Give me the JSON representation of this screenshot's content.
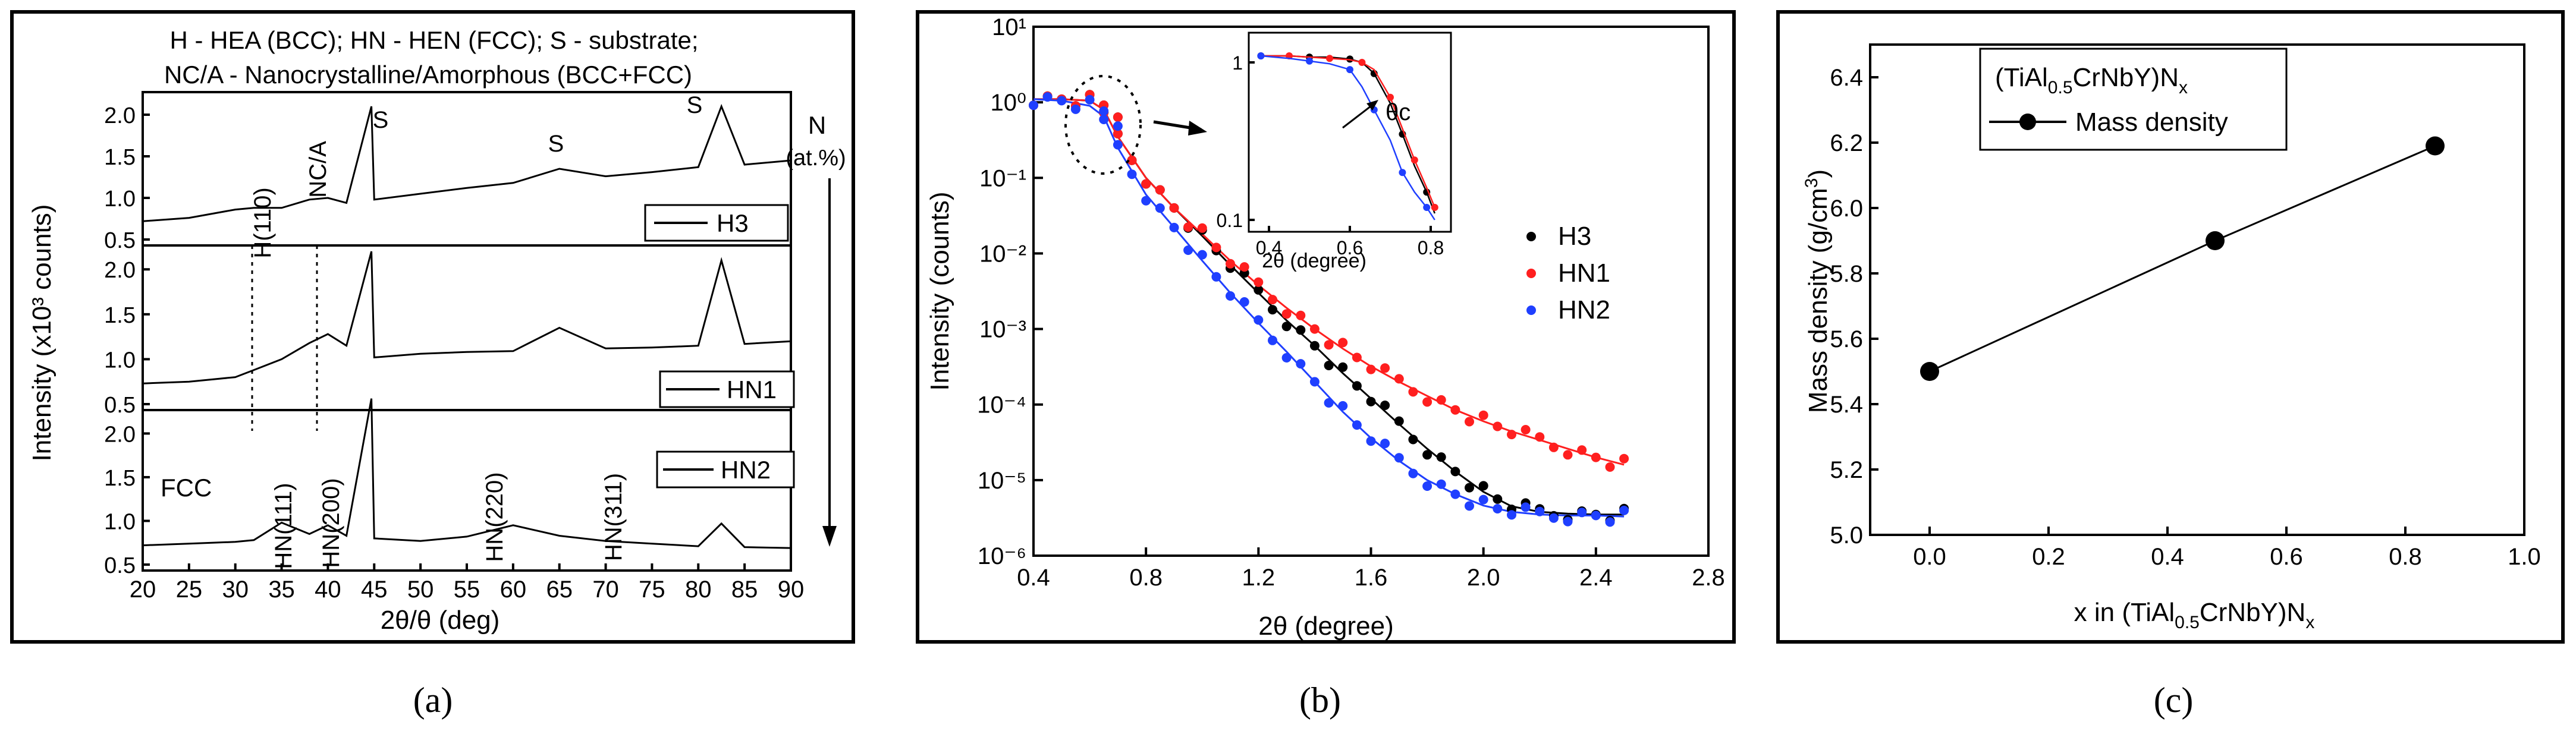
{
  "panel_a": {
    "header_line1": "H - HEA (BCC); HN - HEN (FCC); S - substrate;",
    "header_line2": "NC/A - Nanocrystalline/Amorphous (BCC+FCC)",
    "ylabel": "Intensity (x10³ counts)",
    "xlabel": "2θ/θ (deg)",
    "n_label": "N",
    "n_unit": "(at.%)",
    "caption": "(a)",
    "x_ticks": [
      "20",
      "25",
      "30",
      "35",
      "40",
      "45",
      "50",
      "55",
      "60",
      "65",
      "70",
      "75",
      "80",
      "85",
      "90"
    ],
    "y_ticks": [
      "0.5",
      "1.0",
      "1.5",
      "2.0"
    ],
    "peak_labels": {
      "h110": "H(110)",
      "nca": "NC/A",
      "s1": "S",
      "s2": "S",
      "s3": "S",
      "fcc": "FCC",
      "hn111": "HN(111)",
      "hn200": "HN(200)",
      "hn220": "HN(220)",
      "hn311": "HN(311)"
    },
    "legends": [
      "H3",
      "HN1",
      "HN2"
    ]
  },
  "panel_b": {
    "inset_theta": "θc",
    "inset_xlabel": "2θ (degree)",
    "inset_x_ticks": [
      "0.4",
      "0.6",
      "0.8"
    ],
    "inset_y_ticks": [
      "1",
      "0.1"
    ],
    "caption": "(b)"
  },
  "panel_c": {
    "legend_title": "(TiAl0.5CrNbY)Nx",
    "legend_entry": "Mass density",
    "caption": "(c)"
  },
  "chart_data": [
    {
      "type": "line",
      "panel": "a",
      "xlabel": "2θ/θ (deg)",
      "ylabel": "Intensity (x10³ counts)",
      "xlim": [
        20,
        90
      ],
      "ylim": [
        0.5,
        2.2
      ],
      "x_sample": [
        20,
        25,
        30,
        32,
        35,
        38,
        40,
        42,
        44.7,
        45,
        50,
        55,
        60,
        65,
        70,
        75,
        80,
        82.5,
        85,
        90
      ],
      "series": [
        {
          "name": "H3",
          "values": [
            0.72,
            0.76,
            0.86,
            0.88,
            0.88,
            0.98,
            1.0,
            0.94,
            2.1,
            0.98,
            1.05,
            1.12,
            1.18,
            1.35,
            1.26,
            1.31,
            1.37,
            2.1,
            1.4,
            1.45
          ]
        },
        {
          "name": "HN1",
          "values": [
            0.73,
            0.75,
            0.8,
            0.88,
            1.0,
            1.18,
            1.28,
            1.15,
            2.2,
            1.02,
            1.06,
            1.08,
            1.09,
            1.35,
            1.12,
            1.13,
            1.15,
            2.1,
            1.17,
            1.2
          ]
        },
        {
          "name": "HN2",
          "values": [
            0.72,
            0.74,
            0.76,
            0.78,
            0.98,
            0.85,
            0.95,
            0.83,
            2.4,
            0.8,
            0.77,
            0.82,
            0.95,
            0.83,
            0.77,
            0.74,
            0.71,
            0.97,
            0.7,
            0.69
          ]
        }
      ]
    },
    {
      "type": "scatter",
      "panel": "b",
      "xlabel": "2θ (degree)",
      "ylabel": "Intensity (counts)",
      "xlim": [
        0.4,
        2.8
      ],
      "ylim": [
        1e-06,
        10
      ],
      "y_scale": "log",
      "x_ticks": [
        "0.4",
        "0.8",
        "1.2",
        "1.6",
        "2.0",
        "2.4",
        "2.8"
      ],
      "y_ticks": [
        "10¹",
        "10⁰",
        "10⁻¹",
        "10⁻²",
        "10⁻³",
        "10⁻⁴",
        "10⁻⁵",
        "10⁻⁶"
      ],
      "x": [
        0.4,
        0.5,
        0.6,
        0.65,
        0.7,
        0.8,
        0.9,
        1.0,
        1.1,
        1.2,
        1.3,
        1.4,
        1.5,
        1.6,
        1.7,
        1.8,
        1.9,
        2.0,
        2.1,
        2.2,
        2.3,
        2.4,
        2.5
      ],
      "series": [
        {
          "name": "H3",
          "values": [
            1.1,
            1.1,
            1.05,
            0.8,
            0.35,
            0.1,
            0.04,
            0.017,
            0.007,
            0.003,
            0.0013,
            0.0006,
            0.00026,
            0.00012,
            5.5e-05,
            2.6e-05,
            1.3e-05,
            7e-06,
            4.5e-06,
            3.8e-06,
            3.6e-06,
            3.5e-06,
            3.5e-06
          ]
        },
        {
          "name": "HN1",
          "values": [
            1.1,
            1.1,
            1.05,
            0.8,
            0.35,
            0.1,
            0.04,
            0.018,
            0.008,
            0.0038,
            0.0019,
            0.001,
            0.00055,
            0.00032,
            0.0002,
            0.00013,
            8.5e-05,
            6e-05,
            4.4e-05,
            3.4e-05,
            2.6e-05,
            2e-05,
            1.6e-05
          ]
        },
        {
          "name": "HN2",
          "values": [
            1.1,
            1.05,
            0.9,
            0.65,
            0.25,
            0.06,
            0.022,
            0.008,
            0.003,
            0.0012,
            0.0005,
            0.0002,
            8e-05,
            3.6e-05,
            1.8e-05,
            1e-05,
            6.5e-06,
            4.6e-06,
            3.8e-06,
            3.5e-06,
            3.4e-06,
            3.4e-06,
            3.3e-06
          ]
        }
      ],
      "colors": {
        "H3": "#000000",
        "HN1": "#ff1f1f",
        "HN2": "#1f3fff"
      }
    },
    {
      "type": "line",
      "panel": "c",
      "xlabel": "x in (TiAl0.5CrNbY)Nx",
      "ylabel": "Mass density (g/cm³)",
      "xlim": [
        -0.1,
        1.0
      ],
      "ylim": [
        5.0,
        6.5
      ],
      "x_ticks": [
        "0.0",
        "0.2",
        "0.4",
        "0.6",
        "0.8",
        "1.0"
      ],
      "y_ticks": [
        "5.0",
        "5.2",
        "5.4",
        "5.6",
        "5.8",
        "6.0",
        "6.2",
        "6.4"
      ],
      "series": [
        {
          "name": "Mass density",
          "x": [
            0.0,
            0.48,
            0.85
          ],
          "values": [
            5.5,
            5.9,
            6.19
          ]
        }
      ]
    }
  ]
}
